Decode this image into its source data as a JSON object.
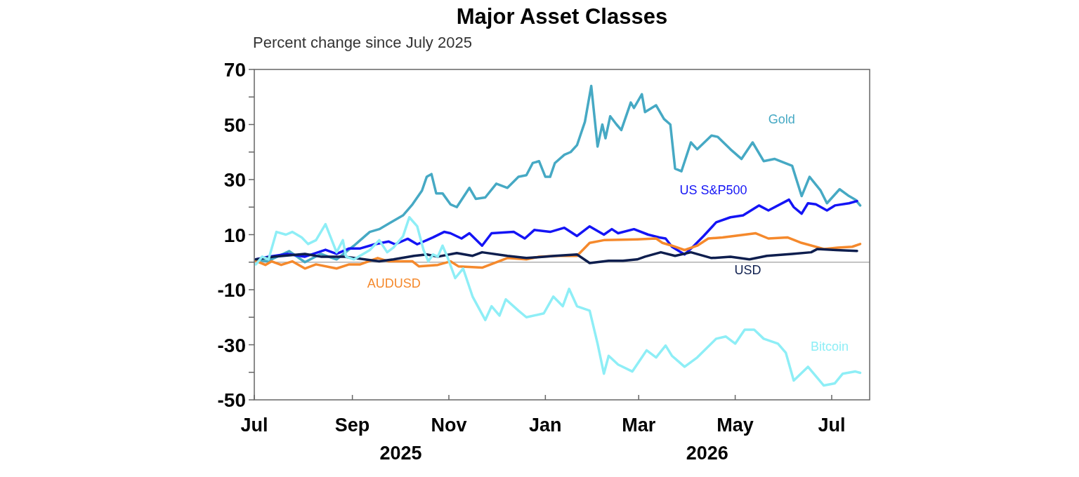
{
  "chart_data": {
    "type": "line",
    "title": "Major Asset Classes",
    "subtitle": "Percent change since July 2025",
    "annotations": [
      "2025",
      "2026"
    ],
    "xlim": [
      "2025-07-01",
      "2026-07-25"
    ],
    "xticks": [
      {
        "value": "2025-07-01",
        "label": "Jul"
      },
      {
        "value": "2025-09-01",
        "label": "Sep"
      },
      {
        "value": "2025-11-01",
        "label": "Nov"
      },
      {
        "value": "2026-01-01",
        "label": "Jan"
      },
      {
        "value": "2026-03-01",
        "label": "Mar"
      },
      {
        "value": "2026-05-01",
        "label": "May"
      },
      {
        "value": "2026-07-01",
        "label": "Jul"
      }
    ],
    "ylim": [
      -50,
      70
    ],
    "yticks": [
      {
        "value": -50,
        "label": "-50"
      },
      {
        "value": -40,
        "label": null
      },
      {
        "value": -30,
        "label": "-30"
      },
      {
        "value": -20,
        "label": null
      },
      {
        "value": -10,
        "label": "-10"
      },
      {
        "value": 0,
        "label": null
      },
      {
        "value": 10,
        "label": "10"
      },
      {
        "value": 20,
        "label": null
      },
      {
        "value": 30,
        "label": "30"
      },
      {
        "value": 40,
        "label": null
      },
      {
        "value": 50,
        "label": "50"
      },
      {
        "value": 60,
        "label": null
      },
      {
        "value": 70,
        "label": "70"
      }
    ],
    "ref_lines": [
      {
        "axis": "y",
        "value": 0,
        "color": "#b0b0b0"
      }
    ],
    "grid": false,
    "series": [
      {
        "name": "Gold",
        "color": "#46a9c4",
        "x": [
          "2025-07-02",
          "2025-07-09",
          "2025-07-23",
          "2025-08-02",
          "2025-08-12",
          "2025-08-22",
          "2025-09-02",
          "2025-09-12",
          "2025-09-18",
          "2025-09-24",
          "2025-10-03",
          "2025-10-09",
          "2025-10-15",
          "2025-10-18",
          "2025-10-21",
          "2025-10-24",
          "2025-10-28",
          "2025-11-02",
          "2025-11-06",
          "2025-11-14",
          "2025-11-18",
          "2025-11-24",
          "2025-12-01",
          "2025-12-08",
          "2025-12-15",
          "2025-12-20",
          "2025-12-24",
          "2025-12-28",
          "2026-01-01",
          "2026-01-04",
          "2026-01-07",
          "2026-01-13",
          "2026-01-17",
          "2026-01-21",
          "2026-01-26",
          "2026-01-30",
          "2026-02-03",
          "2026-02-06",
          "2026-02-08",
          "2026-02-11",
          "2026-02-15",
          "2026-02-18",
          "2026-02-24",
          "2026-02-26",
          "2026-03-03",
          "2026-03-05",
          "2026-03-12",
          "2026-03-17",
          "2026-03-21",
          "2026-03-24",
          "2026-03-28",
          "2026-04-03",
          "2026-04-07",
          "2026-04-16",
          "2026-04-20",
          "2026-04-28",
          "2026-05-05",
          "2026-05-12",
          "2026-05-19",
          "2026-05-26",
          "2026-06-06",
          "2026-06-12",
          "2026-06-17",
          "2026-06-24",
          "2026-06-28",
          "2026-07-06",
          "2026-07-12",
          "2026-07-16",
          "2026-07-19"
        ],
        "values": [
          1,
          0.3,
          4,
          0,
          3,
          1,
          6,
          11,
          12,
          14,
          17,
          21,
          26,
          31,
          32,
          25,
          25,
          21,
          20,
          27,
          23,
          23.5,
          28.5,
          27,
          31,
          31.6,
          36,
          36.7,
          31,
          31,
          36,
          39,
          40,
          42.5,
          51,
          64,
          42,
          50,
          45,
          53,
          50,
          48,
          58,
          56,
          61,
          54.5,
          57,
          52,
          50,
          34,
          33,
          43.5,
          41,
          46,
          45.5,
          41,
          37.5,
          43.5,
          36.7,
          37.5,
          35,
          24,
          31,
          26,
          21.4,
          26.5,
          24,
          22.7,
          20.6
        ]
      },
      {
        "name": "US S&P500",
        "color": "#1414f5",
        "x": [
          "2025-07-02",
          "2025-07-10",
          "2025-07-22",
          "2025-08-02",
          "2025-08-15",
          "2025-08-22",
          "2025-08-30",
          "2025-09-06",
          "2025-09-15",
          "2025-09-24",
          "2025-09-28",
          "2025-10-06",
          "2025-10-12",
          "2025-10-18",
          "2025-10-22",
          "2025-10-29",
          "2025-11-02",
          "2025-11-09",
          "2025-11-14",
          "2025-11-22",
          "2025-11-28",
          "2025-12-12",
          "2025-12-19",
          "2025-12-25",
          "2026-01-04",
          "2026-01-13",
          "2026-01-21",
          "2026-01-29",
          "2026-02-07",
          "2026-02-12",
          "2026-02-16",
          "2026-02-26",
          "2026-03-07",
          "2026-03-14",
          "2026-03-18",
          "2026-03-22",
          "2026-03-30",
          "2026-04-05",
          "2026-04-11",
          "2026-04-19",
          "2026-04-28",
          "2026-05-06",
          "2026-05-16",
          "2026-05-22",
          "2026-06-04",
          "2026-06-07",
          "2026-06-12",
          "2026-06-16",
          "2026-06-21",
          "2026-06-28",
          "2026-07-03",
          "2026-07-12",
          "2026-07-17"
        ],
        "values": [
          1,
          2,
          3,
          2,
          4.5,
          3,
          5,
          5,
          6.5,
          7.5,
          6.5,
          8.5,
          6.5,
          8,
          9,
          11,
          10.5,
          8.6,
          10.5,
          6,
          10.5,
          11,
          8.6,
          11.7,
          11,
          12.5,
          9.5,
          13,
          10,
          12,
          10.5,
          12,
          10,
          9,
          8.6,
          5.6,
          2.8,
          6,
          9.5,
          14.5,
          16.3,
          17,
          20.6,
          18.8,
          22.7,
          20,
          17.6,
          21.4,
          21,
          18.8,
          20.6,
          21.4,
          22.2
        ]
      },
      {
        "name": "AUDUSD",
        "color": "#f5892c",
        "x": [
          "2025-07-02",
          "2025-07-08",
          "2025-07-12",
          "2025-07-18",
          "2025-07-25",
          "2025-08-02",
          "2025-08-09",
          "2025-08-22",
          "2025-08-30",
          "2025-09-06",
          "2025-09-17",
          "2025-09-24",
          "2025-10-09",
          "2025-10-13",
          "2025-10-25",
          "2025-11-02",
          "2025-11-07",
          "2025-11-22",
          "2025-12-08",
          "2025-12-20",
          "2025-12-28",
          "2026-01-09",
          "2026-01-21",
          "2026-01-29",
          "2026-02-07",
          "2026-02-28",
          "2026-03-12",
          "2026-03-16",
          "2026-03-22",
          "2026-03-30",
          "2026-04-07",
          "2026-04-14",
          "2026-04-23",
          "2026-05-14",
          "2026-05-22",
          "2026-06-03",
          "2026-06-12",
          "2026-06-26",
          "2026-07-05",
          "2026-07-14",
          "2026-07-19"
        ],
        "values": [
          0.5,
          -1,
          0.3,
          -1,
          0.3,
          -2.3,
          -0.8,
          -2.3,
          -0.8,
          -0.8,
          1.5,
          0.3,
          0.3,
          -1.5,
          -1,
          0.3,
          -1.5,
          -2,
          1.5,
          1,
          2,
          2.3,
          2.3,
          7,
          8,
          8.3,
          8.6,
          7,
          6,
          4.4,
          6,
          8.6,
          9,
          10.5,
          8.6,
          9,
          7,
          4.8,
          5.3,
          5.6,
          6.6
        ]
      },
      {
        "name": "USD",
        "color": "#0e1e4e",
        "x": [
          "2025-07-02",
          "2025-07-13",
          "2025-08-02",
          "2025-08-12",
          "2025-08-27",
          "2025-09-18",
          "2025-09-27",
          "2025-10-10",
          "2025-10-18",
          "2025-10-25",
          "2025-11-06",
          "2025-11-16",
          "2025-11-22",
          "2025-12-08",
          "2025-12-20",
          "2026-01-07",
          "2026-01-21",
          "2026-01-29",
          "2026-02-10",
          "2026-02-19",
          "2026-02-28",
          "2026-03-05",
          "2026-03-15",
          "2026-03-24",
          "2026-04-03",
          "2026-04-16",
          "2026-04-28",
          "2026-05-10",
          "2026-05-21",
          "2026-06-06",
          "2026-06-18",
          "2026-06-22",
          "2026-07-04",
          "2026-07-17"
        ],
        "values": [
          1,
          2,
          3,
          2,
          2,
          0.3,
          1,
          2.3,
          2.8,
          2,
          3.3,
          2.3,
          3.6,
          2.3,
          1.5,
          2.3,
          2.8,
          -0.3,
          0.5,
          0.5,
          1,
          2,
          3.6,
          2.3,
          3.6,
          1.5,
          2,
          1,
          2.3,
          3,
          3.6,
          4.8,
          4.4,
          4.1
        ]
      },
      {
        "name": "Bitcoin",
        "color": "#8eeef6",
        "x": [
          "2025-07-02",
          "2025-07-06",
          "2025-07-10",
          "2025-07-15",
          "2025-07-21",
          "2025-07-25",
          "2025-07-31",
          "2025-08-04",
          "2025-08-09",
          "2025-08-15",
          "2025-08-19",
          "2025-08-22",
          "2025-08-26",
          "2025-08-28",
          "2025-09-02",
          "2025-09-12",
          "2025-09-18",
          "2025-09-23",
          "2025-09-27",
          "2025-10-03",
          "2025-10-07",
          "2025-10-12",
          "2025-10-16",
          "2025-10-19",
          "2025-10-22",
          "2025-10-25",
          "2025-10-28",
          "2025-10-31",
          "2025-11-05",
          "2025-11-10",
          "2025-11-16",
          "2025-11-24",
          "2025-11-28",
          "2025-12-03",
          "2025-12-07",
          "2025-12-15",
          "2025-12-20",
          "2025-12-31",
          "2026-01-06",
          "2026-01-12",
          "2026-01-16",
          "2026-01-21",
          "2026-01-29",
          "2026-02-03",
          "2026-02-07",
          "2026-02-10",
          "2026-02-16",
          "2026-02-25",
          "2026-03-06",
          "2026-03-12",
          "2026-03-18",
          "2026-03-22",
          "2026-03-30",
          "2026-04-07",
          "2026-04-19",
          "2026-04-25",
          "2026-05-01",
          "2026-05-07",
          "2026-05-13",
          "2026-05-19",
          "2026-05-28",
          "2026-06-02",
          "2026-06-07",
          "2026-06-16",
          "2026-06-26",
          "2026-07-03",
          "2026-07-08",
          "2026-07-16",
          "2026-07-19"
        ],
        "values": [
          -0.8,
          2,
          1,
          11,
          10,
          11,
          9,
          6.6,
          8,
          13.8,
          8,
          3.6,
          8,
          2,
          1,
          4.4,
          8,
          3.6,
          5.3,
          9.4,
          16.3,
          13,
          4.4,
          0.3,
          2.8,
          2,
          6,
          2,
          -5.8,
          -2.3,
          -12.5,
          -21,
          -16,
          -19.4,
          -13.5,
          -17.6,
          -20,
          -18.6,
          -12.5,
          -16,
          -9.7,
          -16,
          -17.6,
          -29.6,
          -40.5,
          -34,
          -37.2,
          -39.7,
          -32,
          -34.6,
          -30.3,
          -34,
          -38,
          -34.6,
          -27.8,
          -27,
          -29.6,
          -24.5,
          -24.5,
          -27.8,
          -29.6,
          -32.9,
          -43,
          -38,
          -44.8,
          -44,
          -40.5,
          -39.7,
          -40.2
        ]
      }
    ]
  }
}
